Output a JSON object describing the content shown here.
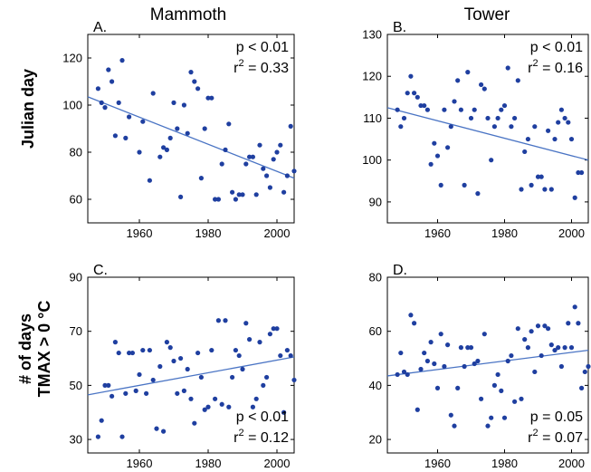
{
  "column_titles": [
    "Mammoth",
    "Tower"
  ],
  "row_labels": {
    "top": "Julian day",
    "bottom_line1": "# of days",
    "bottom_line2": "TMAX > 0 °C"
  },
  "chart_data": [
    {
      "type": "scatter",
      "panel": "A.",
      "title": "Mammoth",
      "ylabel": "Julian day",
      "xlim": [
        1945,
        2005
      ],
      "ylim": [
        50,
        130
      ],
      "xticks": [
        1960,
        1980,
        2000
      ],
      "yticks": [
        60,
        80,
        100,
        120
      ],
      "annotations": {
        "p": "p < 0.01",
        "r2_prefix": "r",
        "r2_exp": "2",
        "r2_value": " = 0.33"
      },
      "trend": [
        [
          1945,
          103.5
        ],
        [
          2005,
          69
        ]
      ],
      "points": [
        [
          1948,
          107
        ],
        [
          1949,
          101
        ],
        [
          1950,
          99
        ],
        [
          1951,
          115
        ],
        [
          1952,
          110
        ],
        [
          1953,
          87
        ],
        [
          1954,
          101
        ],
        [
          1955,
          119
        ],
        [
          1956,
          86
        ],
        [
          1957,
          95
        ],
        [
          1960,
          80
        ],
        [
          1961,
          93
        ],
        [
          1963,
          68
        ],
        [
          1964,
          105
        ],
        [
          1966,
          78
        ],
        [
          1967,
          82
        ],
        [
          1968,
          81
        ],
        [
          1969,
          86
        ],
        [
          1970,
          101
        ],
        [
          1971,
          90
        ],
        [
          1972,
          61
        ],
        [
          1973,
          100
        ],
        [
          1974,
          88
        ],
        [
          1975,
          114
        ],
        [
          1976,
          110
        ],
        [
          1977,
          107
        ],
        [
          1978,
          69
        ],
        [
          1979,
          90
        ],
        [
          1980,
          103
        ],
        [
          1981,
          103
        ],
        [
          1982,
          60
        ],
        [
          1983,
          60
        ],
        [
          1984,
          75
        ],
        [
          1985,
          81
        ],
        [
          1986,
          92
        ],
        [
          1987,
          63
        ],
        [
          1988,
          60
        ],
        [
          1989,
          62
        ],
        [
          1990,
          62
        ],
        [
          1991,
          75
        ],
        [
          1992,
          78
        ],
        [
          1993,
          78
        ],
        [
          1994,
          62
        ],
        [
          1995,
          83
        ],
        [
          1996,
          73
        ],
        [
          1997,
          70
        ],
        [
          1998,
          65
        ],
        [
          1999,
          77
        ],
        [
          2000,
          80
        ],
        [
          2001,
          83
        ],
        [
          2002,
          63
        ],
        [
          2003,
          70
        ],
        [
          2004,
          91
        ],
        [
          2005,
          72
        ]
      ]
    },
    {
      "type": "scatter",
      "panel": "B.",
      "title": "Tower",
      "ylabel": "",
      "xlim": [
        1945,
        2005
      ],
      "ylim": [
        85,
        130
      ],
      "xticks": [
        1960,
        1980,
        2000
      ],
      "yticks": [
        90,
        100,
        110,
        120,
        130
      ],
      "annotations": {
        "p": "p < 0.01",
        "r2_prefix": "r",
        "r2_exp": "2",
        "r2_value": " = 0.16"
      },
      "trend": [
        [
          1945,
          112.5
        ],
        [
          2005,
          100
        ]
      ],
      "points": [
        [
          1948,
          112
        ],
        [
          1949,
          108
        ],
        [
          1950,
          110
        ],
        [
          1951,
          116
        ],
        [
          1952,
          120
        ],
        [
          1953,
          116
        ],
        [
          1954,
          115
        ],
        [
          1955,
          113
        ],
        [
          1956,
          113
        ],
        [
          1957,
          112
        ],
        [
          1958,
          99
        ],
        [
          1959,
          104
        ],
        [
          1960,
          101
        ],
        [
          1961,
          94
        ],
        [
          1962,
          112
        ],
        [
          1963,
          103
        ],
        [
          1964,
          108
        ],
        [
          1965,
          114
        ],
        [
          1966,
          119
        ],
        [
          1967,
          112
        ],
        [
          1968,
          94
        ],
        [
          1969,
          121
        ],
        [
          1970,
          110
        ],
        [
          1971,
          112
        ],
        [
          1972,
          92
        ],
        [
          1973,
          118
        ],
        [
          1974,
          117
        ],
        [
          1975,
          110
        ],
        [
          1976,
          100
        ],
        [
          1977,
          108
        ],
        [
          1978,
          110
        ],
        [
          1979,
          112
        ],
        [
          1980,
          113
        ],
        [
          1981,
          122
        ],
        [
          1982,
          108
        ],
        [
          1983,
          110
        ],
        [
          1984,
          119
        ],
        [
          1985,
          93
        ],
        [
          1986,
          102
        ],
        [
          1987,
          105
        ],
        [
          1988,
          94
        ],
        [
          1989,
          108
        ],
        [
          1990,
          96
        ],
        [
          1991,
          96
        ],
        [
          1992,
          93
        ],
        [
          1993,
          107
        ],
        [
          1994,
          93
        ],
        [
          1995,
          105
        ],
        [
          1996,
          109
        ],
        [
          1997,
          112
        ],
        [
          1998,
          110
        ],
        [
          1999,
          109
        ],
        [
          2000,
          105
        ],
        [
          2001,
          91
        ],
        [
          2002,
          97
        ],
        [
          2003,
          97
        ]
      ]
    },
    {
      "type": "scatter",
      "panel": "C.",
      "title": "",
      "ylabel": "# of days TMAX > 0 °C",
      "xlim": [
        1945,
        2005
      ],
      "ylim": [
        25,
        90
      ],
      "xticks": [
        1960,
        1980,
        2000
      ],
      "yticks": [
        30,
        50,
        70,
        90
      ],
      "annotations": {
        "p": "p < 0.01",
        "r2_prefix": "r",
        "r2_exp": "2",
        "r2_value": " = 0.12"
      },
      "trend": [
        [
          1945,
          46.5
        ],
        [
          2005,
          60.5
        ]
      ],
      "points": [
        [
          1948,
          31
        ],
        [
          1949,
          37
        ],
        [
          1950,
          50
        ],
        [
          1951,
          50
        ],
        [
          1952,
          46
        ],
        [
          1953,
          66
        ],
        [
          1954,
          62
        ],
        [
          1955,
          31
        ],
        [
          1956,
          47
        ],
        [
          1957,
          62
        ],
        [
          1958,
          62
        ],
        [
          1959,
          48
        ],
        [
          1960,
          54
        ],
        [
          1961,
          63
        ],
        [
          1962,
          47
        ],
        [
          1963,
          63
        ],
        [
          1964,
          52
        ],
        [
          1965,
          34
        ],
        [
          1966,
          57
        ],
        [
          1967,
          33
        ],
        [
          1968,
          66
        ],
        [
          1969,
          64
        ],
        [
          1970,
          59
        ],
        [
          1971,
          47
        ],
        [
          1972,
          60
        ],
        [
          1973,
          48
        ],
        [
          1974,
          56
        ],
        [
          1975,
          45
        ],
        [
          1976,
          36
        ],
        [
          1977,
          62
        ],
        [
          1978,
          53
        ],
        [
          1979,
          41
        ],
        [
          1980,
          42
        ],
        [
          1981,
          63
        ],
        [
          1982,
          45
        ],
        [
          1983,
          74
        ],
        [
          1984,
          43
        ],
        [
          1985,
          74
        ],
        [
          1986,
          42
        ],
        [
          1987,
          53
        ],
        [
          1988,
          63
        ],
        [
          1989,
          61
        ],
        [
          1990,
          56
        ],
        [
          1991,
          73
        ],
        [
          1992,
          67
        ],
        [
          1993,
          42
        ],
        [
          1994,
          45
        ],
        [
          1995,
          66
        ],
        [
          1996,
          50
        ],
        [
          1997,
          53
        ],
        [
          1998,
          69
        ],
        [
          1999,
          71
        ],
        [
          2000,
          71
        ],
        [
          2001,
          61
        ],
        [
          2002,
          40
        ],
        [
          2003,
          63
        ],
        [
          2004,
          61
        ],
        [
          2005,
          52
        ]
      ]
    },
    {
      "type": "scatter",
      "panel": "D.",
      "title": "",
      "ylabel": "",
      "xlim": [
        1945,
        2005
      ],
      "ylim": [
        15,
        80
      ],
      "xticks": [
        1960,
        1980,
        2000
      ],
      "yticks": [
        20,
        40,
        60,
        80
      ],
      "annotations": {
        "p": "p = 0.05",
        "r2_prefix": "r",
        "r2_exp": "2",
        "r2_value": " = 0.07"
      },
      "trend": [
        [
          1945,
          43.5
        ],
        [
          2005,
          53
        ]
      ],
      "points": [
        [
          1948,
          44
        ],
        [
          1949,
          52
        ],
        [
          1950,
          45
        ],
        [
          1951,
          44
        ],
        [
          1952,
          66
        ],
        [
          1953,
          63
        ],
        [
          1954,
          31
        ],
        [
          1955,
          46
        ],
        [
          1956,
          52
        ],
        [
          1957,
          49
        ],
        [
          1958,
          56
        ],
        [
          1959,
          48
        ],
        [
          1960,
          39
        ],
        [
          1961,
          59
        ],
        [
          1962,
          47
        ],
        [
          1963,
          55
        ],
        [
          1964,
          29
        ],
        [
          1965,
          25
        ],
        [
          1966,
          39
        ],
        [
          1967,
          54
        ],
        [
          1968,
          47
        ],
        [
          1969,
          54
        ],
        [
          1970,
          54
        ],
        [
          1971,
          48
        ],
        [
          1972,
          49
        ],
        [
          1973,
          35
        ],
        [
          1974,
          59
        ],
        [
          1975,
          25
        ],
        [
          1976,
          28
        ],
        [
          1977,
          40
        ],
        [
          1978,
          44
        ],
        [
          1979,
          38
        ],
        [
          1980,
          28
        ],
        [
          1981,
          49
        ],
        [
          1982,
          51
        ],
        [
          1983,
          34
        ],
        [
          1984,
          61
        ],
        [
          1985,
          35
        ],
        [
          1986,
          57
        ],
        [
          1987,
          54
        ],
        [
          1988,
          60
        ],
        [
          1989,
          45
        ],
        [
          1990,
          62
        ],
        [
          1991,
          51
        ],
        [
          1992,
          62
        ],
        [
          1993,
          61
        ],
        [
          1994,
          55
        ],
        [
          1995,
          53
        ],
        [
          1996,
          54
        ],
        [
          1997,
          47
        ],
        [
          1998,
          54
        ],
        [
          1999,
          63
        ],
        [
          2000,
          54
        ],
        [
          2001,
          69
        ],
        [
          2002,
          63
        ],
        [
          2003,
          39
        ],
        [
          2004,
          45
        ],
        [
          2005,
          47
        ]
      ]
    }
  ]
}
